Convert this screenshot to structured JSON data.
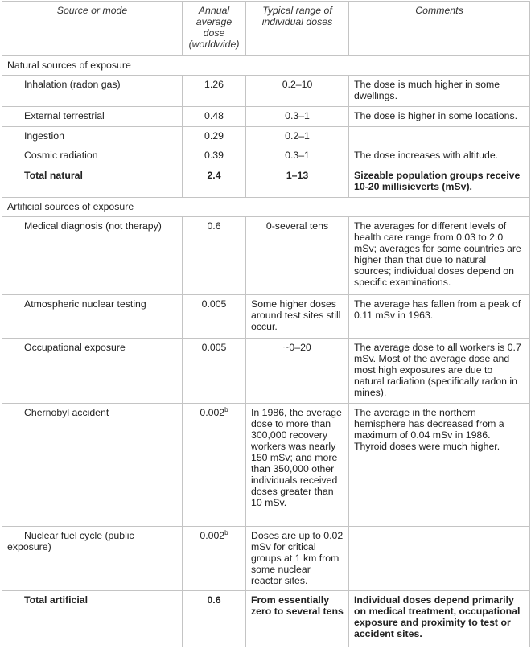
{
  "headers": [
    "Source or mode",
    "Annual average dose (worldwide)",
    "Typical range of individual doses",
    "Comments"
  ],
  "sections": [
    {
      "title": "Natural sources of exposure",
      "rows": [
        {
          "source": "Inhalation (radon gas)",
          "dose": "1.26",
          "dose_note": "",
          "range": "0.2–10",
          "comment": "The dose is much higher in some dwellings."
        },
        {
          "source": "External terrestrial",
          "dose": "0.48",
          "dose_note": "",
          "range": "0.3–1",
          "comment": "The dose is higher in some locations."
        },
        {
          "source": "Ingestion",
          "dose": "0.29",
          "dose_note": "",
          "range": "0.2–1",
          "comment": ""
        },
        {
          "source": "Cosmic radiation",
          "dose": "0.39",
          "dose_note": "",
          "range": "0.3–1",
          "comment": "The dose increases with altitude."
        }
      ],
      "total": {
        "source": "Total natural",
        "dose": "2.4",
        "range": "1–13",
        "comment": "Sizeable population groups receive 10-20 millisieverts (mSv)."
      }
    },
    {
      "title": "Artificial sources of exposure",
      "rows": [
        {
          "source": "Medical diagnosis (not therapy)",
          "dose": "0.6",
          "dose_note": "",
          "range": "0-several tens",
          "comment": "The averages for different levels of health care range from 0.03 to 2.0 mSv; averages for some countries are higher than that due to natural sources; individual doses depend on specific examinations."
        },
        {
          "source": "Atmospheric nuclear testing",
          "dose": "0.005",
          "dose_note": "",
          "range": "Some higher doses around test sites still occur.",
          "comment": "The average has fallen from a peak of 0.11 mSv in 1963."
        },
        {
          "source": "Occupational exposure",
          "dose": "0.005",
          "dose_note": "",
          "range": "~0–20",
          "comment": "The average dose to all workers is 0.7 mSv. Most of the average dose and most high exposures are due to natural radiation (specifically radon in mines)."
        },
        {
          "source": "Chernobyl accident",
          "dose": "0.002",
          "dose_note": "b",
          "range": "In 1986, the average dose to more than 300,000 recovery workers was nearly 150 mSv; and more than 350,000 other individuals received doses greater than 10 mSv.",
          "comment": "The average in the northern hemisphere has decreased from a maximum of 0.04 mSv in 1986. Thyroid doses were much higher."
        },
        {
          "source": "Nuclear fuel cycle (public exposure)",
          "dose": "0.002",
          "dose_note": "b",
          "range": "Doses are up to 0.02 mSv for critical groups at 1 km from some nuclear reactor sites.",
          "comment": ""
        }
      ],
      "total": {
        "source": "Total artificial",
        "dose": "0.6",
        "range": "From essentially zero to several tens",
        "comment": "Individual doses depend primarily on medical treatment, occupational exposure and proximity to test or accident sites."
      }
    }
  ]
}
